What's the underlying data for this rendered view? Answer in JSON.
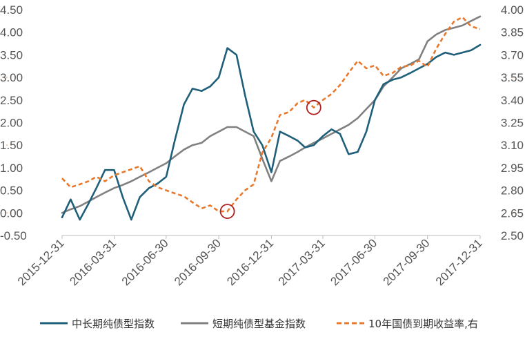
{
  "colors": {
    "long": "#1f5f7a",
    "short": "#808080",
    "yield": "#e8782c",
    "circle": "#b01e1e",
    "axis": "#555555",
    "dots": "#f3c9a6"
  },
  "chart_data": {
    "type": "line",
    "x_dates": [
      "2015-12-31",
      "2016-01-15",
      "2016-01-31",
      "2016-02-15",
      "2016-02-29",
      "2016-03-15",
      "2016-03-31",
      "2016-04-15",
      "2016-04-30",
      "2016-05-15",
      "2016-05-31",
      "2016-06-15",
      "2016-06-30",
      "2016-07-15",
      "2016-07-31",
      "2016-08-15",
      "2016-08-31",
      "2016-09-15",
      "2016-09-30",
      "2016-10-15",
      "2016-10-31",
      "2016-11-15",
      "2016-11-30",
      "2016-12-15",
      "2016-12-31",
      "2017-01-15",
      "2017-01-31",
      "2017-02-15",
      "2017-02-28",
      "2017-03-15",
      "2017-03-31",
      "2017-04-15",
      "2017-04-30",
      "2017-05-15",
      "2017-05-31",
      "2017-06-15",
      "2017-06-30",
      "2017-07-15",
      "2017-07-31",
      "2017-08-15",
      "2017-08-31",
      "2017-09-15",
      "2017-09-30",
      "2017-10-15",
      "2017-10-31",
      "2017-11-15",
      "2017-11-30",
      "2017-12-15",
      "2017-12-31"
    ],
    "x_tick_labels": [
      "2015-12-31",
      "2016-03-31",
      "2016-06-30",
      "2016-09-30",
      "2016-12-31",
      "2017-03-31",
      "2017-06-30",
      "2017-09-30",
      "2017-12-31"
    ],
    "y_left_ticks": [
      "4.50",
      "4.00",
      "3.50",
      "3.00",
      "2.50",
      "2.00",
      "1.50",
      "1.00",
      "0.50",
      "0.00",
      "-0.50"
    ],
    "y_right_ticks": [
      "4.00",
      "3.85",
      "3.70",
      "3.55",
      "3.40",
      "3.25",
      "3.10",
      "2.95",
      "2.80",
      "2.65",
      "2.50"
    ],
    "ylim_left": [
      -0.5,
      4.5
    ],
    "ylim_right": [
      2.5,
      4.0
    ],
    "series": [
      {
        "name": "中长期纯债型指数",
        "axis": "left",
        "style": "solid",
        "values": [
          -0.1,
          0.3,
          -0.15,
          0.2,
          0.55,
          0.95,
          0.95,
          0.35,
          -0.15,
          0.35,
          0.55,
          0.65,
          0.8,
          1.6,
          2.4,
          2.75,
          2.7,
          2.8,
          3.0,
          3.65,
          3.5,
          2.6,
          1.8,
          1.5,
          0.9,
          1.8,
          1.7,
          1.6,
          1.45,
          1.5,
          1.7,
          1.85,
          1.75,
          1.3,
          1.35,
          1.8,
          2.5,
          2.85,
          2.95,
          3.0,
          3.1,
          3.2,
          3.3,
          3.45,
          3.55,
          3.5,
          3.55,
          3.6,
          3.72
        ]
      },
      {
        "name": "短期纯债型基金指数",
        "axis": "left",
        "style": "solid",
        "values": [
          0.0,
          0.08,
          0.15,
          0.25,
          0.35,
          0.45,
          0.55,
          0.62,
          0.7,
          0.8,
          0.9,
          1.0,
          1.1,
          1.25,
          1.4,
          1.5,
          1.55,
          1.7,
          1.8,
          1.9,
          1.9,
          1.8,
          1.7,
          1.2,
          0.7,
          1.15,
          1.25,
          1.35,
          1.45,
          1.55,
          1.65,
          1.75,
          1.85,
          1.95,
          2.1,
          2.3,
          2.5,
          2.8,
          3.0,
          3.2,
          3.3,
          3.4,
          3.8,
          3.95,
          4.05,
          4.1,
          4.15,
          4.25,
          4.35
        ]
      },
      {
        "name": "10年国债到期收益率,右",
        "axis": "right",
        "style": "dashed",
        "values": [
          2.88,
          2.82,
          2.84,
          2.86,
          2.89,
          2.86,
          2.9,
          2.92,
          2.94,
          2.96,
          2.86,
          2.82,
          2.8,
          2.78,
          2.76,
          2.72,
          2.68,
          2.7,
          2.66,
          2.66,
          2.74,
          2.8,
          2.84,
          3.05,
          3.15,
          3.3,
          3.32,
          3.38,
          3.4,
          3.35,
          3.4,
          3.44,
          3.5,
          3.58,
          3.66,
          3.61,
          3.63,
          3.56,
          3.58,
          3.62,
          3.63,
          3.66,
          3.62,
          3.74,
          3.84,
          3.92,
          3.95,
          3.89,
          3.87
        ]
      }
    ],
    "annotations": [
      {
        "type": "circle",
        "series": 2,
        "index": 19
      },
      {
        "type": "circle",
        "series": 2,
        "index": 29
      }
    ],
    "legend": "bottom"
  }
}
